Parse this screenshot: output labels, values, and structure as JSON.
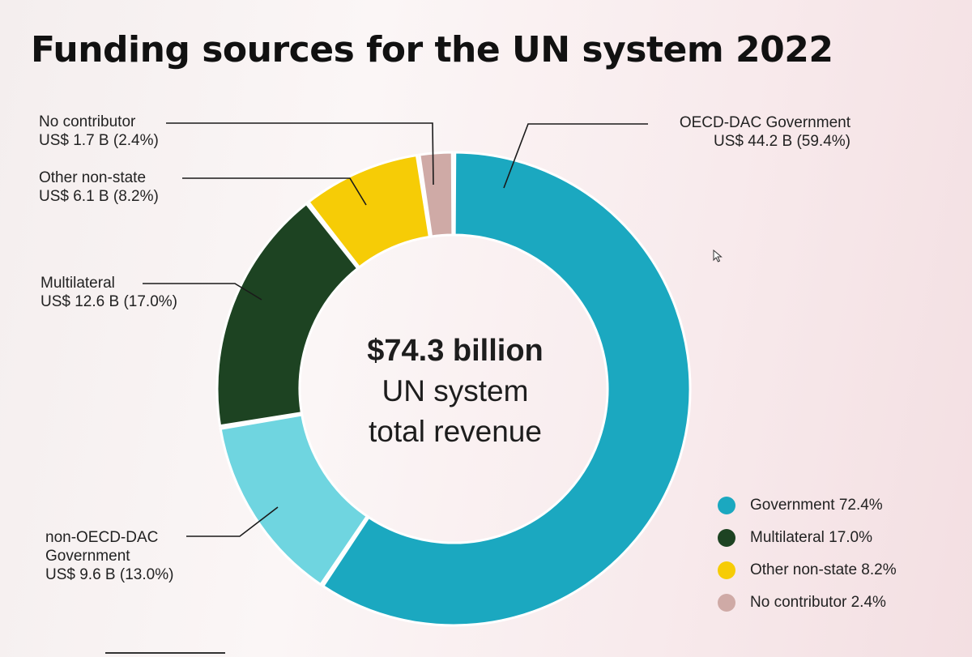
{
  "title": "Funding sources for the UN system 2022",
  "center": {
    "value": "$74.3 billion",
    "caption": "UN system\ntotal revenue"
  },
  "callouts": [
    {
      "name": "OECD-DAC Government",
      "amount": "US$ 44.2 B (59.4%)"
    },
    {
      "name": "non-OECD-DAC Government",
      "amount": "US$ 9.6 B (13.0%)"
    },
    {
      "name": "Multilateral",
      "amount": "US$ 12.6 B (17.0%)"
    },
    {
      "name": "Other non-state",
      "amount": "US$ 6.1 B (8.2%)"
    },
    {
      "name": "No contributor",
      "amount": "US$ 1.7 B (2.4%)"
    }
  ],
  "legend": [
    {
      "label": "Government 72.4%",
      "color": "#1ba8c0"
    },
    {
      "label": "Multilateral 17.0%",
      "color": "#1d4322"
    },
    {
      "label": "Other non-state 8.2%",
      "color": "#f6cc06"
    },
    {
      "label": "No contributor 2.4%",
      "color": "#cfaaa6"
    }
  ],
  "chart_data": {
    "type": "pie",
    "title": "Funding sources for the UN system 2022",
    "donut": true,
    "total_label": "$74.3 billion",
    "slices": [
      {
        "label": "OECD-DAC Government",
        "value": 44.2,
        "percent": 59.4,
        "color": "#1ba8c0"
      },
      {
        "label": "non-OECD-DAC Government",
        "value": 9.6,
        "percent": 13.0,
        "color": "#6fd5e0"
      },
      {
        "label": "Multilateral",
        "value": 12.6,
        "percent": 17.0,
        "color": "#1d4322"
      },
      {
        "label": "Other non-state",
        "value": 6.1,
        "percent": 8.2,
        "color": "#f6cc06"
      },
      {
        "label": "No contributor",
        "value": 1.7,
        "percent": 2.4,
        "color": "#cfaaa6"
      }
    ],
    "legend_position": "bottom-right"
  }
}
